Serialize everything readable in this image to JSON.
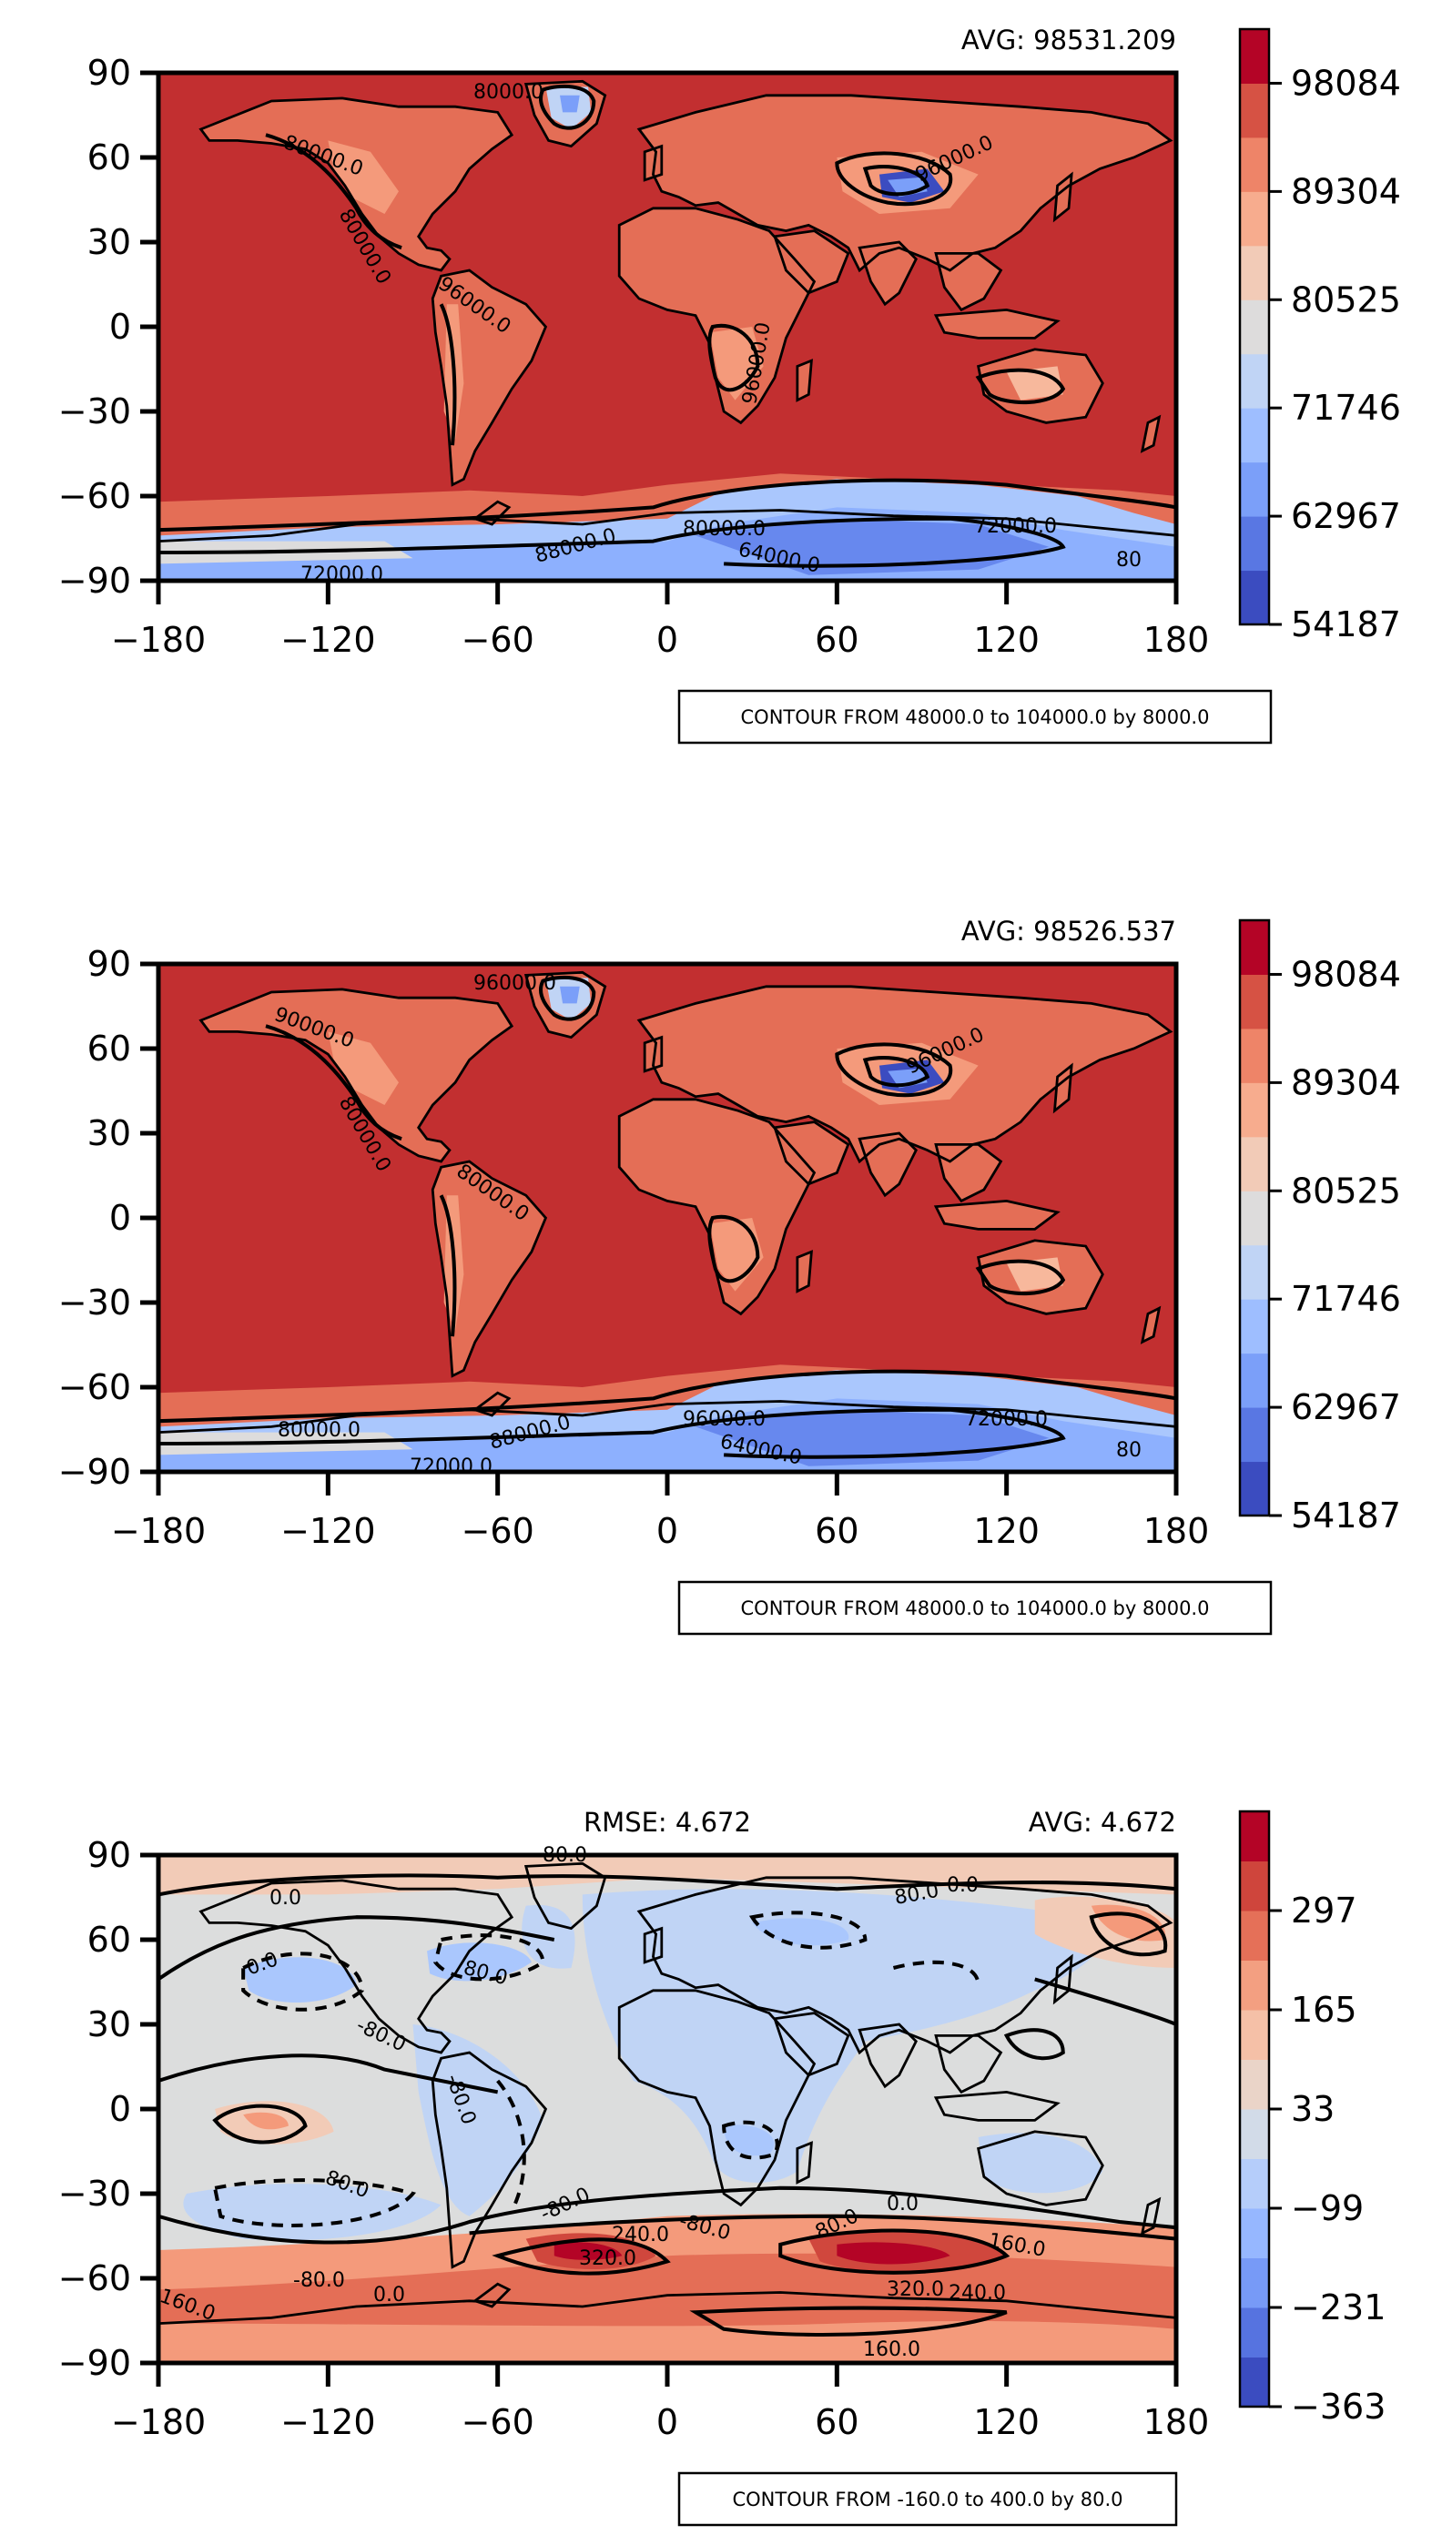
{
  "chart_data": [
    {
      "type": "heatmap",
      "title": "",
      "avg_text": "AVG: 98531.209",
      "xlim": [
        -180,
        180
      ],
      "ylim": [
        -90,
        90
      ],
      "x_ticks": [
        "−180",
        "−120",
        "−60",
        "0",
        "60",
        "120",
        "180"
      ],
      "y_ticks": [
        "90",
        "60",
        "30",
        "0",
        "−30",
        "−60",
        "−90"
      ],
      "colorbar": {
        "ticks": [
          "98084",
          "89304",
          "80525",
          "71746",
          "62967",
          "54187"
        ],
        "range": [
          54187,
          102474
        ],
        "levels": 11
      },
      "contour_labels": [
        "8000.0",
        "80000.0",
        "96000.0",
        "80000.0",
        "96000.0",
        "96000.0",
        "88000.0",
        "72000.0",
        "64000.0",
        "72000.0",
        "80000.0",
        "80"
      ],
      "contour_note": "CONTOUR FROM 48000.0 to 104000.0 by 8000.0"
    },
    {
      "type": "heatmap",
      "title": "",
      "avg_text": "AVG: 98526.537",
      "xlim": [
        -180,
        180
      ],
      "ylim": [
        -90,
        90
      ],
      "x_ticks": [
        "−180",
        "−120",
        "−60",
        "0",
        "60",
        "120",
        "180"
      ],
      "y_ticks": [
        "90",
        "60",
        "30",
        "0",
        "−30",
        "−60",
        "−90"
      ],
      "colorbar": {
        "ticks": [
          "98084",
          "89304",
          "80525",
          "71746",
          "62967",
          "54187"
        ],
        "range": [
          54187,
          102474
        ],
        "levels": 11
      },
      "contour_labels": [
        "96000.0",
        "90000.0",
        "80000.0",
        "96000.0",
        "88000.0",
        "80000.0",
        "72000.0",
        "64000.0",
        "72000.0",
        "96000.0",
        "80000.0",
        "80"
      ],
      "contour_note": "CONTOUR FROM 48000.0 to 104000.0 by 8000.0"
    },
    {
      "type": "heatmap",
      "title": "",
      "rmse_text": "RMSE: 4.672",
      "avg_text": "AVG: 4.672",
      "xlim": [
        -180,
        180
      ],
      "ylim": [
        -90,
        90
      ],
      "x_ticks": [
        "−180",
        "−120",
        "−60",
        "0",
        "60",
        "120",
        "180"
      ],
      "y_ticks": [
        "90",
        "60",
        "30",
        "0",
        "−30",
        "−60",
        "−90"
      ],
      "colorbar": {
        "ticks": [
          "297",
          "165",
          "33",
          "−99",
          "−231",
          "−363"
        ],
        "range": [
          -363,
          429
        ],
        "levels": 12
      },
      "contour_labels": [
        "80.0",
        "80.0",
        "0.0",
        "80.0",
        "0.0",
        "-80.0",
        "-80.0",
        "80.0",
        "-80.0",
        "-80.0",
        "0.0",
        "80.0",
        "160.0",
        "-80.0",
        "0.0",
        "0.0",
        "320.0",
        "240.0",
        "320.0",
        "240.0",
        "160.0",
        "160.0"
      ],
      "contour_note": "CONTOUR FROM -160.0 to 400.0 by 80.0"
    }
  ]
}
